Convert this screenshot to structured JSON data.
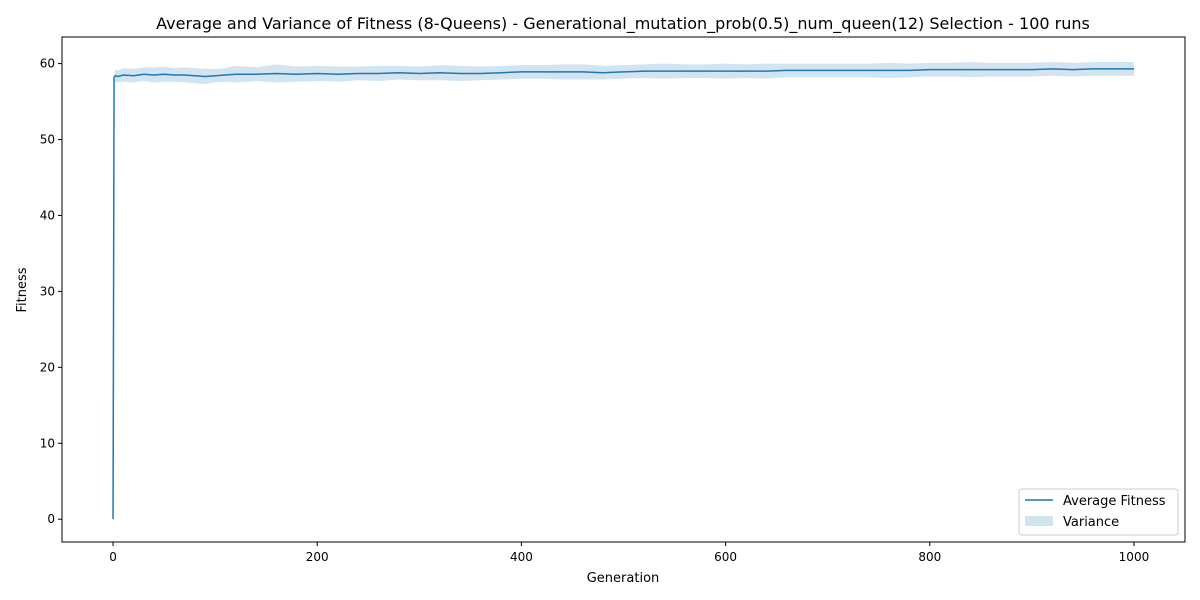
{
  "chart_data": {
    "type": "line",
    "title": "Average and Variance of Fitness (8-Queens) - Generational_mutation_prob(0.5)_num_queen(12) Selection - 100 runs",
    "xlabel": "Generation",
    "ylabel": "Fitness",
    "xlim": [
      -50,
      1050
    ],
    "ylim": [
      -3,
      63.5
    ],
    "xticks": [
      0,
      200,
      400,
      600,
      800,
      1000
    ],
    "yticks": [
      0,
      10,
      20,
      30,
      40,
      50,
      60
    ],
    "grid": false,
    "legend_position": "lower-right",
    "legend": {
      "line_label": "Average Fitness",
      "band_label": "Variance"
    },
    "colors": {
      "line": "#1f77b4",
      "band": "#1f77b4"
    },
    "series": [
      {
        "name": "Average Fitness",
        "x": [
          0,
          1,
          2,
          5,
          10,
          20,
          30,
          40,
          50,
          60,
          70,
          80,
          90,
          100,
          110,
          120,
          140,
          160,
          180,
          200,
          220,
          240,
          260,
          280,
          300,
          320,
          340,
          360,
          380,
          400,
          420,
          440,
          460,
          480,
          500,
          520,
          540,
          560,
          580,
          600,
          620,
          640,
          660,
          680,
          700,
          720,
          740,
          760,
          780,
          800,
          820,
          840,
          860,
          880,
          900,
          920,
          940,
          960,
          980,
          1000
        ],
        "y": [
          0,
          58.2,
          58.4,
          58.3,
          58.5,
          58.4,
          58.6,
          58.5,
          58.6,
          58.5,
          58.5,
          58.4,
          58.3,
          58.4,
          58.5,
          58.6,
          58.6,
          58.7,
          58.6,
          58.7,
          58.6,
          58.7,
          58.7,
          58.8,
          58.7,
          58.8,
          58.7,
          58.7,
          58.8,
          58.9,
          58.9,
          58.9,
          58.9,
          58.8,
          58.9,
          59.0,
          59.0,
          59.0,
          59.0,
          59.0,
          59.0,
          59.0,
          59.1,
          59.1,
          59.1,
          59.1,
          59.1,
          59.1,
          59.1,
          59.2,
          59.2,
          59.2,
          59.2,
          59.2,
          59.2,
          59.3,
          59.2,
          59.3,
          59.3,
          59.3
        ]
      },
      {
        "name": "Variance",
        "x": [
          0,
          1,
          2,
          5,
          10,
          20,
          30,
          40,
          50,
          60,
          70,
          80,
          90,
          100,
          110,
          120,
          140,
          160,
          180,
          200,
          220,
          240,
          260,
          280,
          300,
          320,
          340,
          360,
          380,
          400,
          420,
          440,
          460,
          480,
          500,
          520,
          540,
          560,
          580,
          600,
          620,
          640,
          660,
          680,
          700,
          720,
          740,
          760,
          780,
          800,
          820,
          840,
          860,
          880,
          900,
          920,
          940,
          960,
          980,
          1000
        ],
        "lower": [
          0,
          58.2,
          57.6,
          57.5,
          57.6,
          57.5,
          57.7,
          57.5,
          57.6,
          57.6,
          57.5,
          57.4,
          57.3,
          57.5,
          57.6,
          57.5,
          57.7,
          57.5,
          57.6,
          57.7,
          57.6,
          57.8,
          57.7,
          57.9,
          57.8,
          57.8,
          57.7,
          57.8,
          57.9,
          58.0,
          58.0,
          57.9,
          57.9,
          57.9,
          58.0,
          58.1,
          58.0,
          58.1,
          58.1,
          58.0,
          58.1,
          58.0,
          58.2,
          58.2,
          58.2,
          58.2,
          58.2,
          58.1,
          58.2,
          58.3,
          58.3,
          58.2,
          58.3,
          58.3,
          58.3,
          58.4,
          58.3,
          58.4,
          58.4,
          58.4
        ],
        "upper": [
          0,
          58.2,
          59.2,
          59.1,
          59.4,
          59.3,
          59.5,
          59.5,
          59.6,
          59.4,
          59.5,
          59.4,
          59.3,
          59.3,
          59.4,
          59.7,
          59.5,
          59.9,
          59.6,
          59.7,
          59.6,
          59.6,
          59.7,
          59.7,
          59.6,
          59.8,
          59.7,
          59.6,
          59.7,
          59.8,
          59.8,
          59.9,
          59.9,
          59.7,
          59.8,
          59.9,
          60.0,
          59.9,
          59.9,
          60.0,
          59.9,
          60.0,
          60.0,
          60.0,
          60.0,
          60.0,
          60.0,
          60.1,
          60.0,
          60.1,
          60.1,
          60.2,
          60.1,
          60.1,
          60.1,
          60.2,
          60.1,
          60.2,
          60.2,
          60.2
        ]
      }
    ]
  }
}
